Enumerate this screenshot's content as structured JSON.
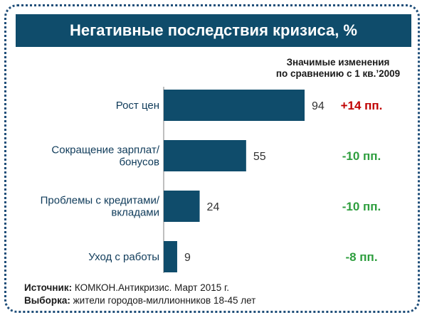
{
  "chart_data": {
    "type": "bar",
    "orientation": "horizontal",
    "title": "Негативные последствия кризиса, %",
    "categories": [
      [
        "Рост цен"
      ],
      [
        "Сокращение зарплат/",
        "бонусов"
      ],
      [
        "Проблемы с кредитами/",
        "вкладами"
      ],
      [
        "Уход с работы"
      ]
    ],
    "values": [
      94,
      55,
      24,
      9
    ],
    "xlim": [
      0,
      100
    ],
    "change_header": [
      "Значимые изменения",
      "по сравнению с 1 кв.’2009"
    ],
    "changes": [
      "+14 пп.",
      "-10 пп.",
      "-10 пп.",
      "-8 пп."
    ],
    "change_colors": [
      "#c00000",
      "#2e9e3e",
      "#2e9e3e",
      "#2e9e3e"
    ],
    "bar_color": "#0f4c6b"
  },
  "footer": {
    "source_label": "Источник:",
    "source_text": " КОМКОН.Антикризис. Март 2015 г.",
    "sample_label": "Выборка:",
    "sample_text": " жители городов-миллионников 18-45 лет"
  }
}
